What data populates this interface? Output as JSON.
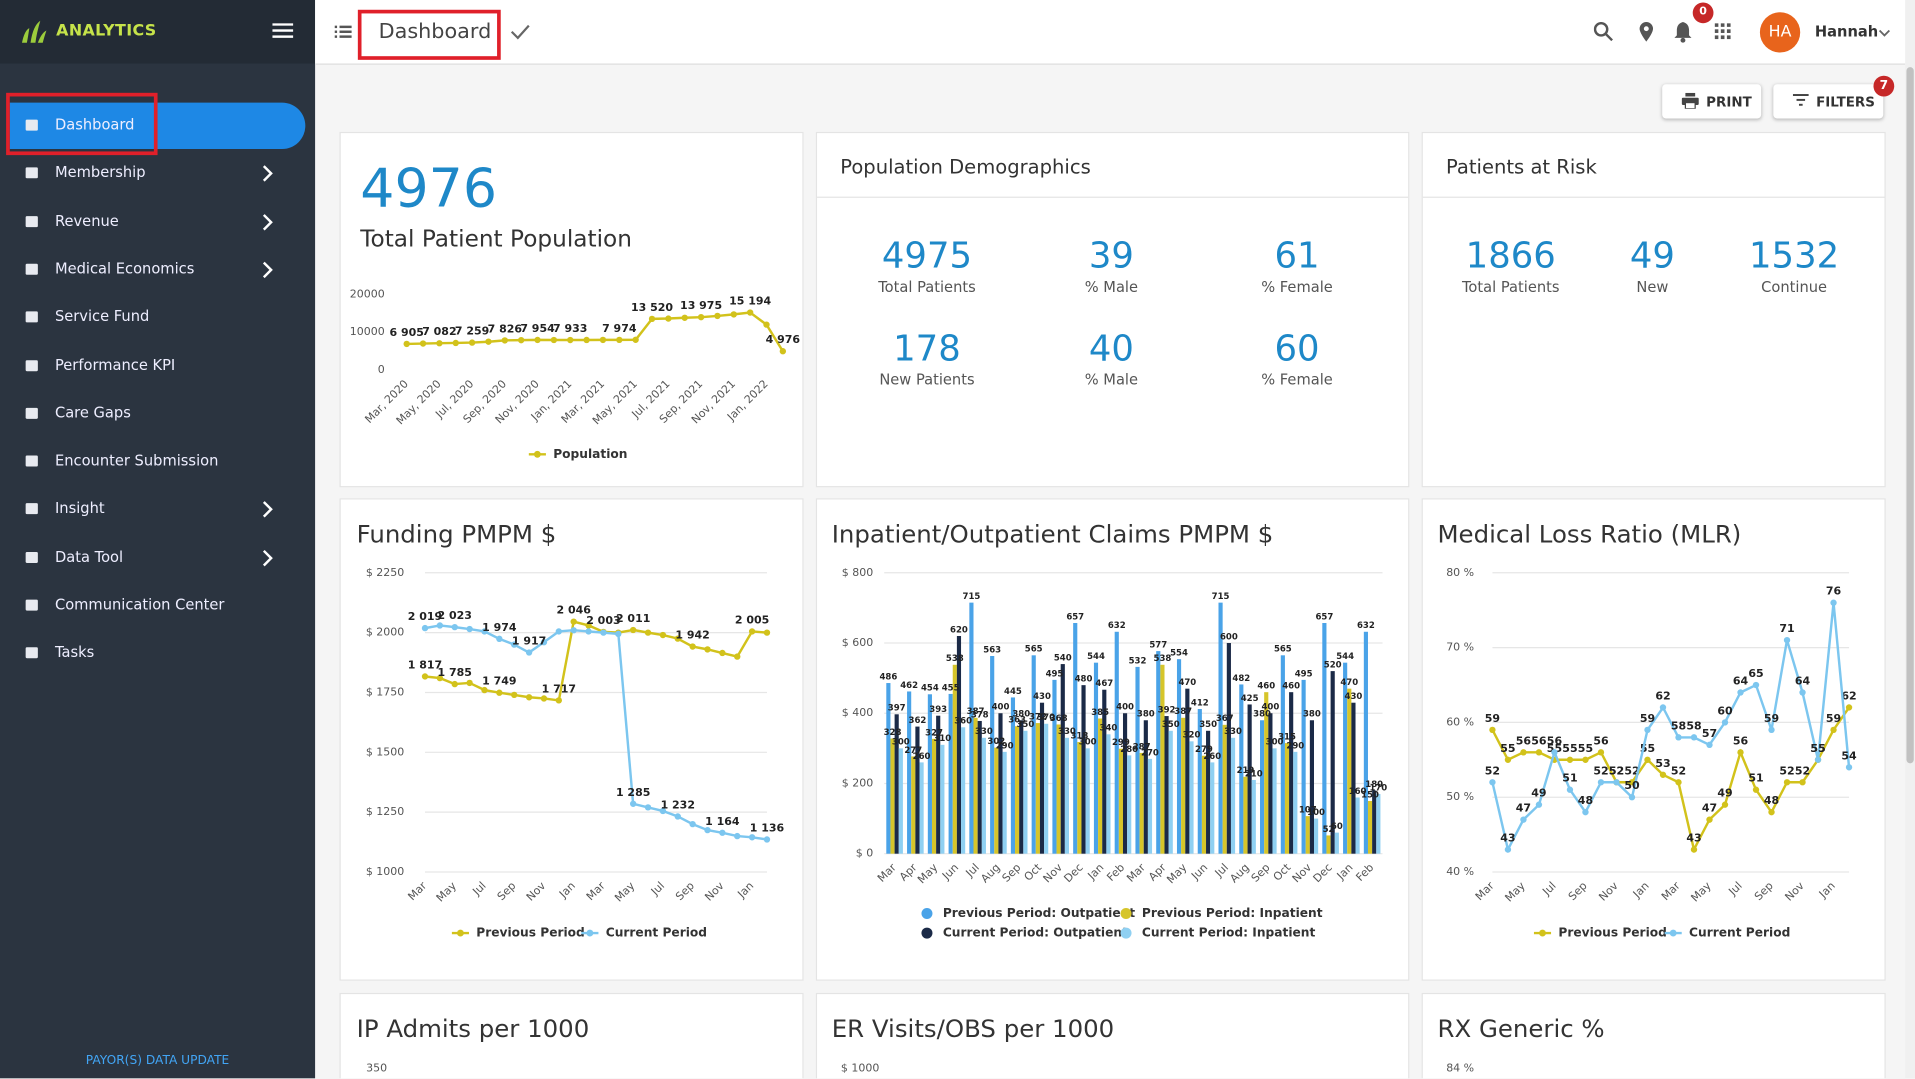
{
  "sidebar": {
    "brand": "ANALYTICS",
    "active": 0,
    "footer": "PAYOR(S) DATA UPDATE",
    "menu": [
      {
        "label": "Dashboard",
        "has_submenu": false
      },
      {
        "label": "Membership",
        "has_submenu": true
      },
      {
        "label": "Revenue",
        "has_submenu": true
      },
      {
        "label": "Medical Economics",
        "has_submenu": true
      },
      {
        "label": "Service Fund",
        "has_submenu": false
      },
      {
        "label": "Performance KPI",
        "has_submenu": false
      },
      {
        "label": "Care Gaps",
        "has_submenu": false
      },
      {
        "label": "Encounter Submission",
        "has_submenu": false
      },
      {
        "label": "Insight",
        "has_submenu": true
      },
      {
        "label": "Data Tool",
        "has_submenu": true
      },
      {
        "label": "Communication Center",
        "has_submenu": false
      },
      {
        "label": "Tasks",
        "has_submenu": false
      }
    ]
  },
  "header": {
    "title": "Dashboard",
    "notifications": 0,
    "user_initials": "HA",
    "user_name": "Hannah"
  },
  "toolbar": {
    "print": "PRINT",
    "filters": "FILTERS",
    "filter_count": 7
  },
  "summary": {
    "value": 4976,
    "label": "Total Patient Population",
    "chart": {
      "type": "line",
      "categories": [
        "Mar, 2020",
        null,
        "May, 2020",
        null,
        "Jul, 2020",
        null,
        "Sep, 2020",
        null,
        "Nov, 2020",
        null,
        "Jan, 2021",
        null,
        "Mar, 2021",
        null,
        "May, 2021",
        null,
        "Jul, 2021",
        null,
        "Sep, 2021",
        null,
        "Nov, 2021",
        null,
        "Jan, 2022",
        null
      ],
      "ylim": [
        0,
        20000
      ],
      "yticks": [
        0,
        10000,
        20000
      ],
      "grid": false,
      "series": [
        {
          "name": "Population",
          "color": "#d2c21b",
          "values": [
            6905,
            7000,
            7082,
            7150,
            7259,
            7500,
            7826,
            7900,
            7954,
            7940,
            7933,
            7950,
            7960,
            7974,
            7990,
            13520,
            13600,
            13800,
            13975,
            14300,
            14700,
            15194,
            12000,
            4976
          ],
          "value_labels": [
            "6 905",
            null,
            "7 082",
            null,
            "7 259",
            null,
            "7 826",
            null,
            "7 954",
            null,
            "7 933",
            null,
            null,
            "7 974",
            null,
            "13 520",
            null,
            null,
            "13 975",
            null,
            null,
            "15 194",
            null,
            "4 976"
          ]
        }
      ]
    }
  },
  "demographics": {
    "title": "Population Demographics",
    "stats": [
      {
        "value": 4975,
        "label": "Total Patients"
      },
      {
        "value": 39,
        "label": "% Male"
      },
      {
        "value": 61,
        "label": "% Female"
      },
      {
        "value": 178,
        "label": "New Patients"
      },
      {
        "value": 40,
        "label": "% Male"
      },
      {
        "value": 60,
        "label": "% Female"
      }
    ]
  },
  "risk": {
    "title": "Patients at Risk",
    "stats": [
      {
        "value": 1866,
        "label": "Total Patients"
      },
      {
        "value": 49,
        "label": "New"
      },
      {
        "value": 1532,
        "label": "Continue"
      }
    ]
  },
  "charts": [
    {
      "type": "line",
      "title": "Funding PMPM $",
      "categories": [
        "Mar",
        null,
        "May",
        null,
        "Jul",
        null,
        "Sep",
        null,
        "Nov",
        null,
        "Jan",
        null,
        "Mar",
        null,
        "May",
        null,
        "Jul",
        null,
        "Sep",
        null,
        "Nov",
        null,
        "Jan",
        null
      ],
      "ylim": [
        1000,
        2250
      ],
      "yticks": [
        {
          "value": 1000,
          "label": "$ 1000"
        },
        {
          "value": 1250,
          "label": "$ 1250"
        },
        {
          "value": 1500,
          "label": "$ 1500"
        },
        {
          "value": 1750,
          "label": "$ 1750"
        },
        {
          "value": 2000,
          "label": "$ 2000"
        },
        {
          "value": 2250,
          "label": "$ 2250"
        }
      ],
      "grid": true,
      "series": [
        {
          "name": "Previous Period",
          "color": "#d2c21b",
          "values": [
            1817,
            1810,
            1785,
            1790,
            1760,
            1749,
            1740,
            1730,
            1725,
            1717,
            2046,
            2030,
            2003,
            2000,
            2011,
            2000,
            1990,
            1975,
            1942,
            1930,
            1915,
            1900,
            2005,
            2000
          ],
          "value_labels": [
            "1 817",
            null,
            "1 785",
            null,
            null,
            "1 749",
            null,
            null,
            null,
            "1 717",
            "2 046",
            null,
            "2 003",
            null,
            "2 011",
            null,
            null,
            null,
            "1 942",
            null,
            null,
            null,
            "2 005",
            null
          ]
        },
        {
          "name": "Current Period",
          "color": "#7cc6ef",
          "values": [
            2019,
            2030,
            2023,
            2015,
            2005,
            1974,
            1950,
            1917,
            1960,
            2005,
            2010,
            2005,
            2000,
            1995,
            1285,
            1270,
            1255,
            1232,
            1200,
            1175,
            1164,
            1150,
            1145,
            1136
          ],
          "value_labels": [
            "2 019",
            null,
            "2 023",
            null,
            null,
            "1 974",
            null,
            "1 917",
            null,
            null,
            null,
            null,
            null,
            null,
            "1 285",
            null,
            null,
            "1 232",
            null,
            null,
            "1 164",
            null,
            null,
            "1 136"
          ]
        }
      ]
    },
    {
      "type": "bar",
      "title": "Inpatient/Outpatient Claims PMPM $",
      "categories": [
        "Mar",
        "Apr",
        "May",
        "Jun",
        "Jul",
        "Aug",
        "Sep",
        "Oct",
        "Nov",
        "Dec",
        "Jan",
        "Feb",
        "Mar",
        "Apr",
        "May",
        "Jun",
        "Jul",
        "Aug",
        "Sep",
        "Oct",
        "Nov",
        "Dec",
        "Jan",
        "Feb"
      ],
      "ylim": [
        0,
        800
      ],
      "yticks": [
        {
          "value": 0,
          "label": "$ 0"
        },
        {
          "value": 200,
          "label": "$ 200"
        },
        {
          "value": 400,
          "label": "$ 400"
        },
        {
          "value": 600,
          "label": "$ 600"
        },
        {
          "value": 800,
          "label": "$ 800"
        }
      ],
      "grid": true,
      "series": [
        {
          "name": "Previous Period: Outpatient",
          "color": "#4aa3e8",
          "values": [
            486,
            462,
            454,
            455,
            715,
            563,
            445,
            565,
            495,
            657,
            544,
            632,
            532,
            577,
            554,
            412,
            715,
            482,
            380,
            565,
            495,
            657,
            544,
            632
          ]
        },
        {
          "name": "Previous Period: Inpatient",
          "color": "#d6c52a",
          "values": [
            328,
            277,
            327,
            538,
            387,
            302,
            363,
            372,
            368,
            318,
            385,
            299,
            287,
            538,
            387,
            279,
            367,
            219,
            460,
            315,
            107,
            52,
            470,
            150
          ]
        },
        {
          "name": "Current Period: Outpatient",
          "color": "#1b2a47",
          "values": [
            397,
            362,
            393,
            620,
            378,
            400,
            380,
            430,
            540,
            480,
            467,
            400,
            380,
            392,
            470,
            350,
            600,
            425,
            400,
            460,
            380,
            520,
            430,
            180
          ]
        },
        {
          "name": "Current Period: Inpatient",
          "color": "#8fd0f2",
          "values": [
            300,
            260,
            310,
            360,
            330,
            290,
            350,
            370,
            330,
            300,
            340,
            280,
            270,
            350,
            320,
            260,
            330,
            210,
            300,
            290,
            100,
            60,
            160,
            170
          ]
        }
      ]
    },
    {
      "type": "line",
      "title": "Medical Loss Ratio (MLR)",
      "categories": [
        "Mar",
        null,
        "May",
        null,
        "Jul",
        null,
        "Sep",
        null,
        "Nov",
        null,
        "Jan",
        null,
        "Mar",
        null,
        "May",
        null,
        "Jul",
        null,
        "Sep",
        null,
        "Nov",
        null,
        "Jan",
        null
      ],
      "ylim": [
        40,
        80
      ],
      "yticks": [
        {
          "value": 40,
          "label": "40 %"
        },
        {
          "value": 50,
          "label": "50 %"
        },
        {
          "value": 60,
          "label": "60 %"
        },
        {
          "value": 70,
          "label": "70 %"
        },
        {
          "value": 80,
          "label": "80 %"
        }
      ],
      "grid": true,
      "series": [
        {
          "name": "Previous Period",
          "color": "#d2c21b",
          "values": [
            59,
            55,
            56,
            56,
            55,
            55,
            55,
            56,
            52,
            52,
            55,
            53,
            52,
            43,
            47,
            49,
            56,
            51,
            48,
            52,
            52,
            55,
            59,
            62
          ]
        },
        {
          "name": "Current Period",
          "color": "#7cc6ef",
          "values": [
            52,
            43,
            47,
            49,
            56,
            51,
            48,
            52,
            52,
            50,
            59,
            62,
            58,
            58,
            57,
            60,
            64,
            65,
            59,
            71,
            64,
            55,
            76,
            54
          ]
        }
      ]
    },
    {
      "type": "line",
      "title": "IP Admits per 1000",
      "yticks": [
        350
      ]
    },
    {
      "type": "line",
      "title": "ER Visits/OBS per 1000",
      "yticks": [
        {
          "value": 1000,
          "label": "$ 1000"
        }
      ]
    },
    {
      "type": "line",
      "title": "RX Generic %",
      "yticks": [
        {
          "value": 84,
          "label": "84 %"
        }
      ]
    }
  ]
}
